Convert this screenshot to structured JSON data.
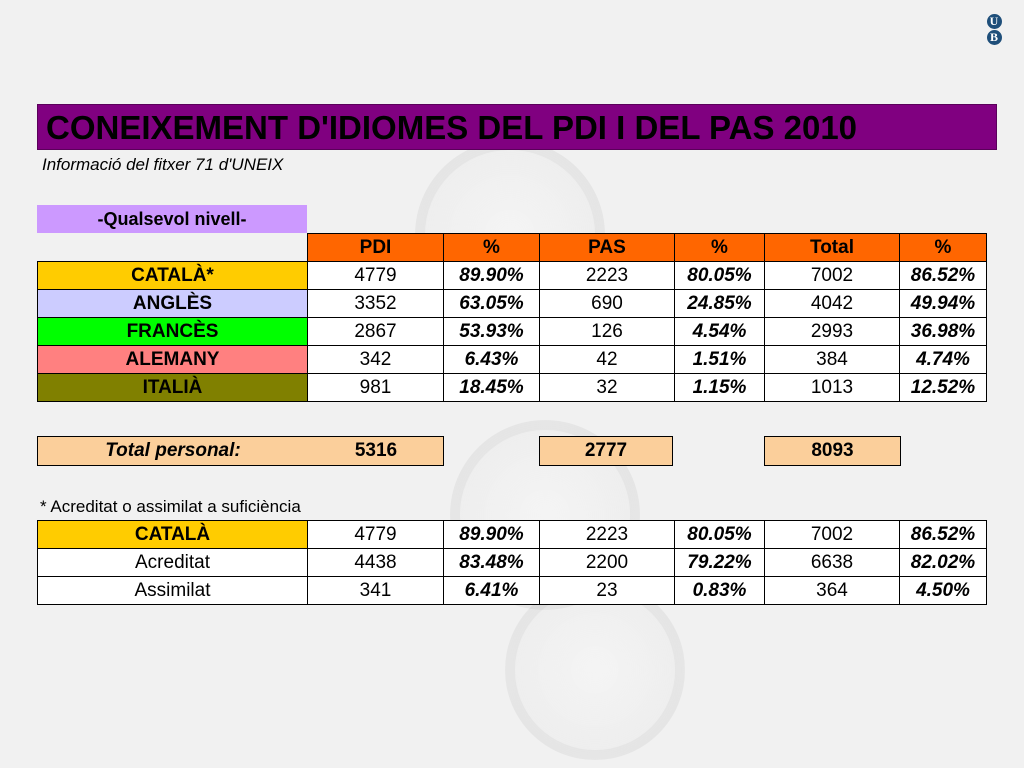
{
  "logo": {
    "top": "U",
    "bottom": "B"
  },
  "title": "CONEIXEMENT D'IDIOMES DEL PDI I DEL PAS 2010",
  "subtitle": "Informació del fitxer 71 d'UNEIX",
  "level_label": "-Qualsevol nivell-",
  "columns": [
    "PDI",
    "%",
    "PAS",
    "%",
    "Total",
    "%"
  ],
  "rows": [
    {
      "label": "CATALÀ*",
      "color": "#ffcc00",
      "values": [
        "4779",
        "89.90%",
        "2223",
        "80.05%",
        "7002",
        "86.52%"
      ]
    },
    {
      "label": "ANGLÈS",
      "color": "#ccccff",
      "values": [
        "3352",
        "63.05%",
        "690",
        "24.85%",
        "4042",
        "49.94%"
      ]
    },
    {
      "label": "FRANCÈS",
      "color": "#00ff00",
      "values": [
        "2867",
        "53.93%",
        "126",
        "4.54%",
        "2993",
        "36.98%"
      ]
    },
    {
      "label": "ALEMANY",
      "color": "#ff8080",
      "values": [
        "342",
        "6.43%",
        "42",
        "1.51%",
        "384",
        "4.74%"
      ]
    },
    {
      "label": "ITALIÀ",
      "color": "#808000",
      "values": [
        "981",
        "18.45%",
        "32",
        "1.15%",
        "1013",
        "12.52%"
      ]
    }
  ],
  "totals": {
    "label": "Total personal:",
    "pdi": "5316",
    "pas": "2777",
    "total": "8093",
    "color": "#fbcf9b"
  },
  "footnote": "* Acreditat o assimilat a suficiència",
  "catala_breakdown": {
    "header": {
      "label": "CATALÀ",
      "color": "#ffcc00",
      "values": [
        "4779",
        "89.90%",
        "2223",
        "80.05%",
        "7002",
        "86.52%"
      ]
    },
    "rows": [
      {
        "label": "Acreditat",
        "values": [
          "4438",
          "83.48%",
          "2200",
          "79.22%",
          "6638",
          "82.02%"
        ]
      },
      {
        "label": "Assimilat",
        "values": [
          "341",
          "6.41%",
          "23",
          "0.83%",
          "364",
          "4.50%"
        ]
      }
    ]
  },
  "colors": {
    "title_bg": "#800080",
    "header_bg": "#ff6600",
    "level_bg": "#cc99ff"
  }
}
